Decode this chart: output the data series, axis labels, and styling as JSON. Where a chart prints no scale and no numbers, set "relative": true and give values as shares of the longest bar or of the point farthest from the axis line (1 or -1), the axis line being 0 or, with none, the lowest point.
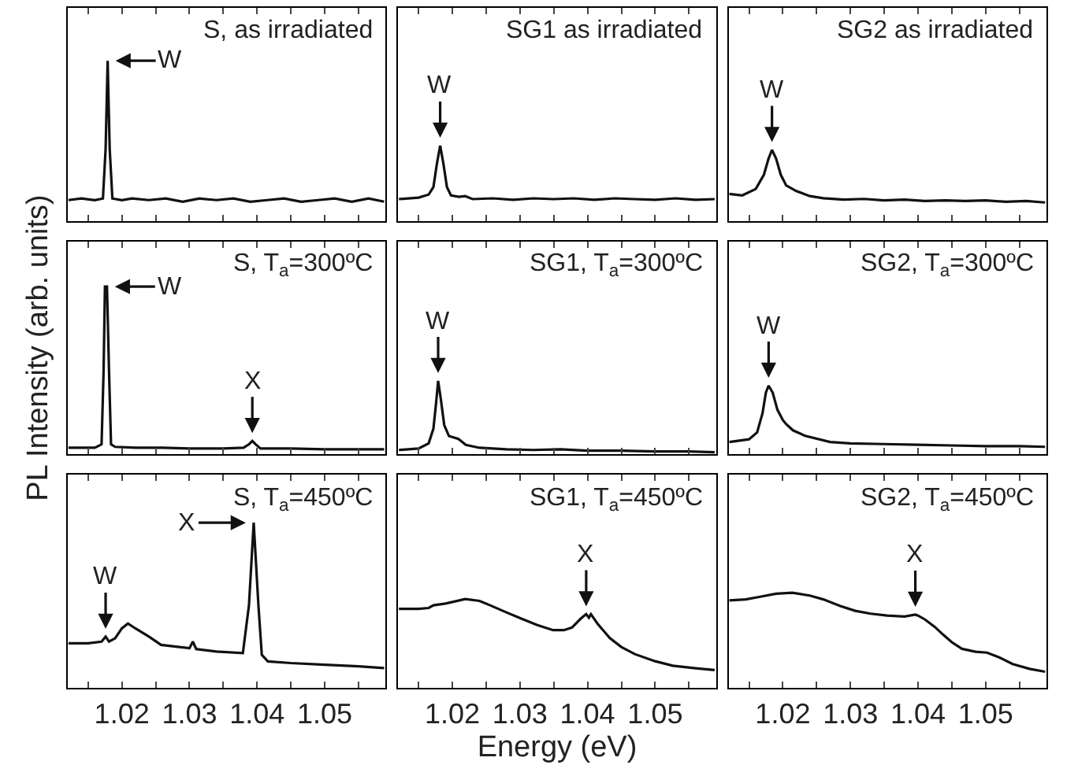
{
  "chart_data": [
    {
      "type": "line",
      "title": "S, as irradiated",
      "relative": true,
      "color": "#111111",
      "xlim": [
        1.012,
        1.059
      ],
      "xticks": [
        {
          "value": 1.015,
          "label": null
        },
        {
          "value": 1.02,
          "label": null
        },
        {
          "value": 1.025,
          "label": null
        },
        {
          "value": 1.03,
          "label": null
        },
        {
          "value": 1.035,
          "label": null
        },
        {
          "value": 1.04,
          "label": null
        },
        {
          "value": 1.045,
          "label": null
        },
        {
          "value": 1.05,
          "label": null
        },
        {
          "value": 1.055,
          "label": null
        }
      ],
      "tick_labels": false,
      "x": [
        1.0121,
        1.014,
        1.016,
        1.0172,
        1.0176,
        1.0179,
        1.0182,
        1.0186,
        1.02,
        1.0215,
        1.024,
        1.0265,
        1.029,
        1.0315,
        1.034,
        1.0365,
        1.039,
        1.0415,
        1.044,
        1.0465,
        1.049,
        1.0515,
        1.054,
        1.0565,
        1.0588
      ],
      "values": [
        0.13,
        0.14,
        0.13,
        0.14,
        0.45,
        1.0,
        0.45,
        0.14,
        0.13,
        0.14,
        0.13,
        0.14,
        0.12,
        0.14,
        0.13,
        0.14,
        0.12,
        0.13,
        0.14,
        0.12,
        0.13,
        0.14,
        0.12,
        0.14,
        0.12
      ],
      "annotations": [
        {
          "text": "W",
          "x": 1.0179,
          "y": 1.0
        }
      ]
    },
    {
      "type": "line",
      "title": "SG1 as irradiated",
      "relative": true,
      "color": "#111111",
      "xlim": [
        1.012,
        1.059
      ],
      "xticks": [
        {
          "value": 1.015,
          "label": null
        },
        {
          "value": 1.02,
          "label": null
        },
        {
          "value": 1.025,
          "label": null
        },
        {
          "value": 1.03,
          "label": null
        },
        {
          "value": 1.035,
          "label": null
        },
        {
          "value": 1.04,
          "label": null
        },
        {
          "value": 1.045,
          "label": null
        },
        {
          "value": 1.05,
          "label": null
        },
        {
          "value": 1.055,
          "label": null
        }
      ],
      "tick_labels": false,
      "x": [
        1.0121,
        1.015,
        1.0165,
        1.0172,
        1.0177,
        1.0182,
        1.0187,
        1.0192,
        1.0198,
        1.021,
        1.0219,
        1.023,
        1.026,
        1.029,
        1.032,
        1.035,
        1.038,
        1.041,
        1.044,
        1.047,
        1.05,
        1.053,
        1.056,
        1.0588
      ],
      "values": [
        0.29,
        0.31,
        0.35,
        0.45,
        0.75,
        1.0,
        0.75,
        0.45,
        0.34,
        0.32,
        0.33,
        0.29,
        0.3,
        0.28,
        0.3,
        0.29,
        0.3,
        0.28,
        0.3,
        0.29,
        0.28,
        0.3,
        0.28,
        0.29
      ],
      "annotations": [
        {
          "text": "W",
          "x": 1.0182,
          "y": 1.0
        }
      ]
    },
    {
      "type": "line",
      "title": "SG2 as irradiated",
      "relative": true,
      "color": "#111111",
      "xlim": [
        1.012,
        1.059
      ],
      "xticks": [
        {
          "value": 1.015,
          "label": null
        },
        {
          "value": 1.02,
          "label": null
        },
        {
          "value": 1.025,
          "label": null
        },
        {
          "value": 1.03,
          "label": null
        },
        {
          "value": 1.035,
          "label": null
        },
        {
          "value": 1.04,
          "label": null
        },
        {
          "value": 1.045,
          "label": null
        },
        {
          "value": 1.05,
          "label": null
        },
        {
          "value": 1.055,
          "label": null
        }
      ],
      "tick_labels": false,
      "x": [
        1.0121,
        1.014,
        1.016,
        1.0172,
        1.0179,
        1.0184,
        1.019,
        1.0197,
        1.0205,
        1.022,
        1.024,
        1.026,
        1.029,
        1.032,
        1.035,
        1.038,
        1.041,
        1.044,
        1.047,
        1.05,
        1.053,
        1.056,
        1.0588
      ],
      "values": [
        0.38,
        0.36,
        0.45,
        0.65,
        0.88,
        1.0,
        0.88,
        0.65,
        0.5,
        0.42,
        0.35,
        0.32,
        0.3,
        0.31,
        0.29,
        0.3,
        0.28,
        0.29,
        0.28,
        0.29,
        0.27,
        0.28,
        0.26
      ],
      "annotations": [
        {
          "text": "W",
          "x": 1.0184,
          "y": 1.0
        }
      ]
    },
    {
      "type": "line",
      "title": "S, T$_{a}$=300ºC",
      "relative": true,
      "color": "#111111",
      "xlim": [
        1.012,
        1.059
      ],
      "xticks": [
        {
          "value": 1.015,
          "label": null
        },
        {
          "value": 1.02,
          "label": null
        },
        {
          "value": 1.025,
          "label": null
        },
        {
          "value": 1.03,
          "label": null
        },
        {
          "value": 1.035,
          "label": null
        },
        {
          "value": 1.04,
          "label": null
        },
        {
          "value": 1.045,
          "label": null
        },
        {
          "value": 1.05,
          "label": null
        },
        {
          "value": 1.055,
          "label": null
        }
      ],
      "tick_labels": false,
      "ylabel": "PL Intensity (arb. units)",
      "x": [
        1.0121,
        1.016,
        1.017,
        1.0173,
        1.0175,
        1.0178,
        1.0181,
        1.0184,
        1.019,
        1.022,
        1.026,
        1.03,
        1.035,
        1.038,
        1.0388,
        1.0393,
        1.0398,
        1.0405,
        1.045,
        1.05,
        1.055,
        1.0588
      ],
      "values": [
        0.04,
        0.04,
        0.06,
        0.5,
        1.0,
        1.0,
        0.5,
        0.06,
        0.045,
        0.04,
        0.04,
        0.035,
        0.035,
        0.04,
        0.06,
        0.08,
        0.06,
        0.035,
        0.035,
        0.03,
        0.03,
        0.03
      ],
      "annotations": [
        {
          "text": "W",
          "x": 1.0178,
          "y": 1.0
        },
        {
          "text": "X",
          "x": 1.0393,
          "y": 0.08
        }
      ]
    },
    {
      "type": "line",
      "title": "SG1, T$_{a}$=300ºC",
      "relative": true,
      "color": "#111111",
      "xlim": [
        1.012,
        1.059
      ],
      "xticks": [
        {
          "value": 1.015,
          "label": null
        },
        {
          "value": 1.02,
          "label": null
        },
        {
          "value": 1.025,
          "label": null
        },
        {
          "value": 1.03,
          "label": null
        },
        {
          "value": 1.035,
          "label": null
        },
        {
          "value": 1.04,
          "label": null
        },
        {
          "value": 1.045,
          "label": null
        },
        {
          "value": 1.05,
          "label": null
        },
        {
          "value": 1.055,
          "label": null
        }
      ],
      "tick_labels": false,
      "x": [
        1.0121,
        1.015,
        1.0165,
        1.0172,
        1.0176,
        1.0179,
        1.0183,
        1.0188,
        1.0195,
        1.0209,
        1.022,
        1.024,
        1.028,
        1.032,
        1.036,
        1.04,
        1.045,
        1.05,
        1.055,
        1.0588
      ],
      "values": [
        0.06,
        0.08,
        0.15,
        0.35,
        0.7,
        1.0,
        0.75,
        0.4,
        0.25,
        0.21,
        0.13,
        0.09,
        0.07,
        0.06,
        0.07,
        0.05,
        0.05,
        0.04,
        0.04,
        0.03
      ],
      "annotations": [
        {
          "text": "W",
          "x": 1.0179,
          "y": 1.0
        }
      ]
    },
    {
      "type": "line",
      "title": "SG2, T$_{a}$=300ºC",
      "relative": true,
      "color": "#111111",
      "xlim": [
        1.012,
        1.059
      ],
      "xticks": [
        {
          "value": 1.015,
          "label": null
        },
        {
          "value": 1.02,
          "label": null
        },
        {
          "value": 1.025,
          "label": null
        },
        {
          "value": 1.03,
          "label": null
        },
        {
          "value": 1.035,
          "label": null
        },
        {
          "value": 1.04,
          "label": null
        },
        {
          "value": 1.045,
          "label": null
        },
        {
          "value": 1.05,
          "label": null
        },
        {
          "value": 1.055,
          "label": null
        }
      ],
      "tick_labels": false,
      "x": [
        1.0121,
        1.015,
        1.0162,
        1.017,
        1.0175,
        1.0179,
        1.0185,
        1.0192,
        1.02,
        1.0205,
        1.0215,
        1.0233,
        1.027,
        1.03,
        1.035,
        1.04,
        1.045,
        1.05,
        1.055,
        1.0588
      ],
      "values": [
        0.18,
        0.22,
        0.32,
        0.6,
        0.9,
        1.0,
        0.9,
        0.65,
        0.5,
        0.44,
        0.35,
        0.27,
        0.18,
        0.16,
        0.15,
        0.14,
        0.13,
        0.12,
        0.12,
        0.11
      ],
      "annotations": [
        {
          "text": "W",
          "x": 1.0179,
          "y": 1.0
        }
      ]
    },
    {
      "type": "line",
      "title": "S, T$_{a}$=450ºC",
      "relative": true,
      "color": "#111111",
      "xlim": [
        1.012,
        1.059
      ],
      "xticks": [
        {
          "value": 1.015,
          "label": null
        },
        1.02,
        {
          "value": 1.025,
          "label": null
        },
        1.03,
        {
          "value": 1.035,
          "label": null
        },
        1.04,
        {
          "value": 1.045,
          "label": null
        },
        1.05,
        {
          "value": 1.055,
          "label": null
        }
      ],
      "tick_labels": "x",
      "x": [
        1.0121,
        1.015,
        1.017,
        1.0176,
        1.0181,
        1.019,
        1.02,
        1.0209,
        1.022,
        1.024,
        1.0258,
        1.028,
        1.03,
        1.0305,
        1.031,
        1.034,
        1.0379,
        1.0388,
        1.0395,
        1.0402,
        1.0407,
        1.0416,
        1.045,
        1.05,
        1.055,
        1.0588
      ],
      "values": [
        0.27,
        0.27,
        0.28,
        0.31,
        0.28,
        0.3,
        0.36,
        0.39,
        0.36,
        0.31,
        0.26,
        0.25,
        0.24,
        0.28,
        0.235,
        0.22,
        0.21,
        0.5,
        1.0,
        0.5,
        0.2,
        0.16,
        0.15,
        0.14,
        0.13,
        0.12
      ],
      "annotations": [
        {
          "text": "W",
          "x": 1.0176,
          "y": 0.31
        },
        {
          "text": "X",
          "x": 1.0395,
          "y": 1.0
        }
      ]
    },
    {
      "type": "line",
      "title": "SG1, T$_{a}$=450ºC",
      "relative": true,
      "color": "#111111",
      "xlim": [
        1.012,
        1.059
      ],
      "xticks": [
        {
          "value": 1.015,
          "label": null
        },
        1.02,
        {
          "value": 1.025,
          "label": null
        },
        1.03,
        {
          "value": 1.035,
          "label": null
        },
        1.04,
        {
          "value": 1.045,
          "label": null
        },
        1.05,
        {
          "value": 1.055,
          "label": null
        }
      ],
      "tick_labels": "x",
      "xlabel": "Energy (eV)",
      "x": [
        1.0121,
        1.015,
        1.0165,
        1.0172,
        1.019,
        1.0219,
        1.024,
        1.0256,
        1.028,
        1.0302,
        1.0325,
        1.0349,
        1.0365,
        1.0377,
        1.039,
        1.0398,
        1.0402,
        1.0405,
        1.0415,
        1.0433,
        1.045,
        1.047,
        1.05,
        1.0526,
        1.056,
        1.0588
      ],
      "values": [
        0.89,
        0.89,
        0.9,
        0.93,
        0.95,
        1.0,
        0.98,
        0.93,
        0.85,
        0.78,
        0.71,
        0.65,
        0.65,
        0.68,
        0.78,
        0.83,
        0.79,
        0.83,
        0.72,
        0.56,
        0.46,
        0.38,
        0.3,
        0.25,
        0.22,
        0.2
      ],
      "annotations": [
        {
          "text": "X",
          "x": 1.0398,
          "y": 0.83
        }
      ]
    },
    {
      "type": "line",
      "title": "SG2, T$_{a}$=450ºC",
      "relative": true,
      "color": "#111111",
      "xlim": [
        1.012,
        1.059
      ],
      "xticks": [
        {
          "value": 1.015,
          "label": null
        },
        1.02,
        {
          "value": 1.025,
          "label": null
        },
        1.03,
        {
          "value": 1.035,
          "label": null
        },
        1.04,
        {
          "value": 1.045,
          "label": null
        },
        1.05,
        {
          "value": 1.055,
          "label": null
        }
      ],
      "tick_labels": "x",
      "x": [
        1.0121,
        1.0145,
        1.0168,
        1.019,
        1.0214,
        1.024,
        1.026,
        1.0285,
        1.0307,
        1.033,
        1.0354,
        1.038,
        1.0396,
        1.04,
        1.041,
        1.0425,
        1.0437,
        1.045,
        1.0465,
        1.0485,
        1.0502,
        1.052,
        1.054,
        1.0565,
        1.0588
      ],
      "values": [
        0.92,
        0.93,
        0.96,
        0.99,
        1.0,
        0.97,
        0.93,
        0.86,
        0.81,
        0.78,
        0.76,
        0.75,
        0.77,
        0.76,
        0.72,
        0.64,
        0.56,
        0.48,
        0.41,
        0.38,
        0.37,
        0.32,
        0.25,
        0.2,
        0.17
      ],
      "annotations": [
        {
          "text": "X",
          "x": 1.0396,
          "y": 0.77
        }
      ]
    }
  ]
}
